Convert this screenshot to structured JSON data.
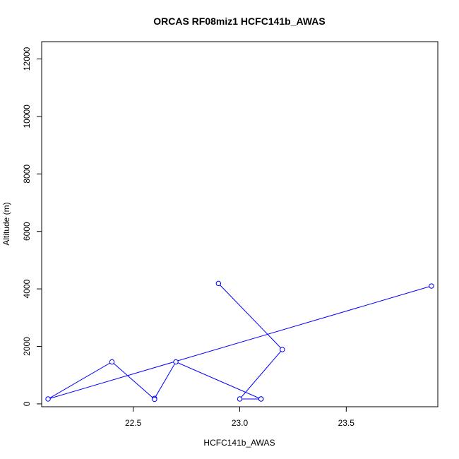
{
  "chart_data": {
    "type": "line",
    "title": "ORCAS RF08miz1 HCFC141b_AWAS",
    "xlabel": "HCFC141b_AWAS",
    "ylabel": "Altitude (m)",
    "xlim": [
      22.07,
      23.93
    ],
    "ylim": [
      -100,
      12600
    ],
    "xticks": [
      22.5,
      23.0,
      23.5
    ],
    "xtick_labels": [
      "22.5",
      "23.0",
      "23.5"
    ],
    "yticks": [
      0,
      2000,
      4000,
      6000,
      8000,
      10000,
      12000
    ],
    "ytick_labels": [
      "0",
      "2000",
      "4000",
      "6000",
      "8000",
      "10000",
      "12000"
    ],
    "grid": false,
    "series": [
      {
        "color": "#0000ff",
        "marker": "open-circle",
        "x": [
          22.9,
          23.2,
          23.0,
          23.1
        ],
        "y": [
          4190,
          1890,
          170,
          170
        ]
      },
      {
        "color": "#0000ff",
        "marker": "open-circle",
        "x": [
          23.1,
          22.7,
          22.6,
          22.6,
          22.4,
          22.1,
          23.9
        ],
        "y": [
          170,
          1460,
          190,
          160,
          1460,
          170,
          4100
        ]
      }
    ]
  }
}
